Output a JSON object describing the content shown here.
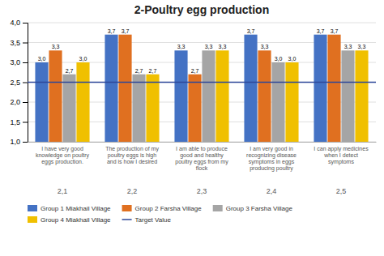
{
  "chart_data": {
    "type": "bar",
    "title": "2-Poultry egg production",
    "categories": [
      "I have very good\nknowledge on poultry\neggs production.",
      "The production of my\npoultry eggs is high\nand is how I desired",
      "I am able to produce\ngood and healthy\npoultry eggs from my\nflock",
      "I am very good in\nrecognizing disease\nsymptoms in eggs\nproducing poultry",
      "I can apply medicines\nwhen I detect\nsymptoms"
    ],
    "annotations": [
      "2,1",
      "2,2",
      "2,3",
      "2,4",
      "2,5"
    ],
    "series": [
      {
        "name": "Group 1 Miakhail Village",
        "color": "#4472C4",
        "values": [
          3.0,
          3.7,
          3.3,
          3.7,
          3.7
        ],
        "value_labels": [
          "3,0",
          "3,7",
          "3,3",
          "3,7",
          "3,7"
        ]
      },
      {
        "name": "Group 2 Farsha Village",
        "color": "#E07020",
        "values": [
          3.3,
          3.7,
          2.7,
          3.3,
          3.7
        ],
        "value_labels": [
          "3,3",
          "3,7",
          "2,7",
          "3,3",
          "3,7"
        ]
      },
      {
        "name": "Group 3 Farsha Village",
        "color": "#A5A5A5",
        "values": [
          2.7,
          2.7,
          3.3,
          3.0,
          3.3
        ],
        "value_labels": [
          "2,7",
          "2,7",
          "3,3",
          "3,0",
          "3,3"
        ]
      },
      {
        "name": "Group 4 Miakhail Village",
        "color": "#F0C000",
        "values": [
          3.0,
          2.7,
          3.3,
          3.0,
          3.3
        ],
        "value_labels": [
          "3,0",
          "2,7",
          "3,3",
          "3,0",
          "3,3"
        ]
      }
    ],
    "reference_lines": [
      {
        "name": "Target Value",
        "value": 2.5,
        "color": "#2E4799"
      }
    ],
    "ylim": [
      1.0,
      4.0
    ],
    "yticks": [
      {
        "value": 1.0,
        "label": "1,0"
      },
      {
        "value": 1.5,
        "label": "1,5"
      },
      {
        "value": 2.0,
        "label": "2,0"
      },
      {
        "value": 2.5,
        "label": "2,5"
      },
      {
        "value": 3.0,
        "label": "3,0"
      },
      {
        "value": 3.5,
        "label": "3,5"
      },
      {
        "value": 4.0,
        "label": "4,0"
      }
    ],
    "grid": true,
    "data_labels": true,
    "legend": "bottom"
  }
}
